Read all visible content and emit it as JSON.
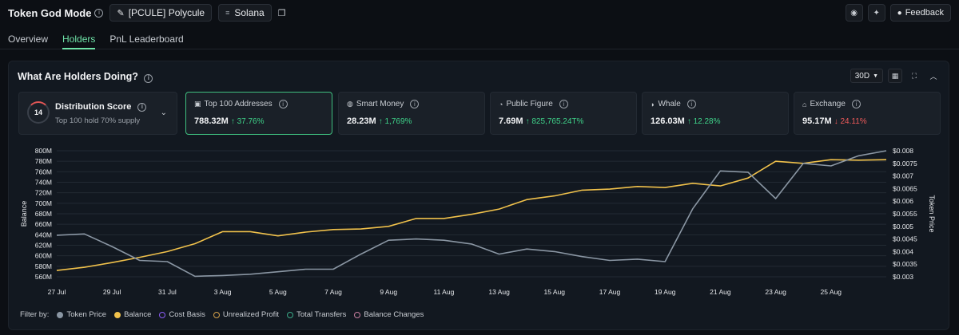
{
  "header": {
    "app_title": "Token God Mode",
    "token_label": "[PCULE] Polycule",
    "chain_label": "Solana",
    "feedback_label": "Feedback",
    "icons": [
      "info-icon",
      "pencil-icon",
      "solana-icon",
      "copy-icon",
      "eye-icon",
      "pin-icon",
      "chat-icon"
    ]
  },
  "tabs": [
    {
      "label": "Overview",
      "active": false
    },
    {
      "label": "Holders",
      "active": true
    },
    {
      "label": "PnL Leaderboard",
      "active": false
    }
  ],
  "panel": {
    "title": "What Are Holders Doing?",
    "range_label": "30D",
    "distribution": {
      "score": "14",
      "title": "Distribution Score",
      "subtitle": "Top 100 hold 70% supply"
    },
    "cards": [
      {
        "label": "Top 100 Addresses",
        "value": "788.32M",
        "change": "↑ 37.76%",
        "direction": "up",
        "active": true,
        "icon": "wallet-icon"
      },
      {
        "label": "Smart Money",
        "value": "28.23M",
        "change": "↑ 1,769%",
        "direction": "up",
        "active": false,
        "icon": "brain-icon"
      },
      {
        "label": "Public Figure",
        "value": "7.69M",
        "change": "↑ 825,765.24T%",
        "direction": "up",
        "active": false,
        "icon": "megaphone-icon"
      },
      {
        "label": "Whale",
        "value": "126.03M",
        "change": "↑ 12.28%",
        "direction": "up",
        "active": false,
        "icon": "whale-icon"
      },
      {
        "label": "Exchange",
        "value": "95.17M",
        "change": "↓ 24.11%",
        "direction": "down",
        "active": false,
        "icon": "bank-icon"
      }
    ]
  },
  "legend": {
    "filter_label": "Filter by:",
    "items": [
      {
        "label": "Token Price",
        "color": "#8a96a3",
        "filled": true
      },
      {
        "label": "Balance",
        "color": "#f0c14b",
        "filled": true
      },
      {
        "label": "Cost Basis",
        "color": "#8b5cf6",
        "filled": false
      },
      {
        "label": "Unrealized Profit",
        "color": "#d4a04a",
        "filled": false
      },
      {
        "label": "Total Transfers",
        "color": "#3aa987",
        "filled": false
      },
      {
        "label": "Balance Changes",
        "color": "#c87fa0",
        "filled": false
      }
    ]
  },
  "chart_data": {
    "type": "line",
    "xlabel": "",
    "ylabel": "Balance",
    "y2label": "Token Price",
    "ylim": [
      560,
      800
    ],
    "y2lim": [
      0.003,
      0.008
    ],
    "x_ticks": [
      "27 Jul",
      "29 Jul",
      "31 Jul",
      "3 Aug",
      "5 Aug",
      "7 Aug",
      "9 Aug",
      "11 Aug",
      "13 Aug",
      "15 Aug",
      "17 Aug",
      "19 Aug",
      "21 Aug",
      "23 Aug",
      "25 Aug"
    ],
    "y_ticks": [
      "560M",
      "580M",
      "600M",
      "620M",
      "640M",
      "660M",
      "680M",
      "700M",
      "720M",
      "740M",
      "760M",
      "780M",
      "800M"
    ],
    "y2_ticks": [
      "$0.003",
      "$0.0035",
      "$0.004",
      "$0.0045",
      "$0.005",
      "$0.0055",
      "$0.006",
      "$0.0065",
      "$0.007",
      "$0.0075",
      "$0.008"
    ],
    "x_count": 31,
    "series": [
      {
        "name": "Balance",
        "axis": "left",
        "color": "#f0c14b",
        "values": [
          572,
          578,
          587,
          597,
          608,
          623,
          646,
          646,
          638,
          645,
          650,
          651,
          656,
          671,
          671,
          679,
          689,
          707,
          714,
          725,
          727,
          732,
          730,
          738,
          733,
          748,
          780,
          776,
          783,
          782,
          783
        ]
      },
      {
        "name": "Token Price",
        "axis": "right",
        "color": "#8a96a3",
        "values": [
          0.00465,
          0.0047,
          0.0042,
          0.00365,
          0.0036,
          0.00302,
          0.00305,
          0.0031,
          0.0032,
          0.0033,
          0.0033,
          0.0039,
          0.00445,
          0.0045,
          0.00445,
          0.0043,
          0.0039,
          0.0041,
          0.004,
          0.0038,
          0.00365,
          0.0037,
          0.0036,
          0.0057,
          0.0072,
          0.00715,
          0.0061,
          0.0075,
          0.0074,
          0.0078,
          0.008
        ]
      }
    ],
    "grid": true,
    "legend_position": "bottom-left"
  }
}
